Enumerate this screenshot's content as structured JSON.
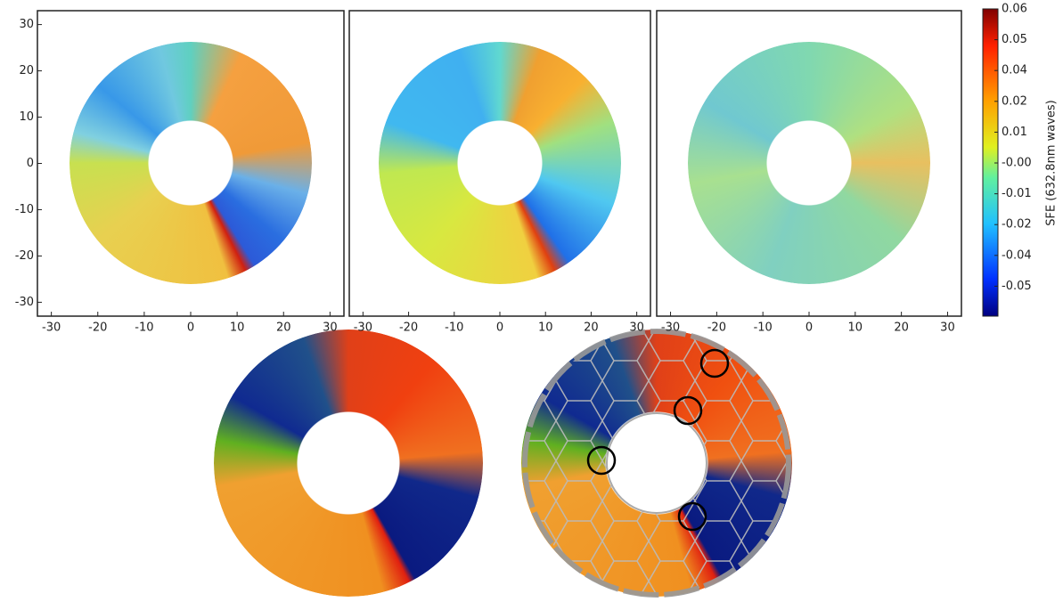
{
  "chart_data": [
    {
      "type": "annulus-map",
      "xlim": [
        -33,
        33
      ],
      "ylim": [
        -33,
        33
      ],
      "xticks": [
        -30,
        -20,
        -10,
        0,
        10,
        20,
        30
      ],
      "yticks": [
        -30,
        -20,
        -10,
        0,
        10,
        20,
        30
      ]
    },
    {
      "type": "annulus-map",
      "xlim": [
        -33,
        33
      ],
      "ylim": [
        -33,
        33
      ],
      "xticks": [
        -30,
        -20,
        -10,
        0,
        10,
        20,
        30
      ]
    },
    {
      "type": "annulus-map",
      "xlim": [
        -33,
        33
      ],
      "ylim": [
        -33,
        33
      ],
      "xticks": [
        -30,
        -20,
        -10,
        0,
        10,
        20,
        30
      ]
    }
  ],
  "colorbar": {
    "label": "SFE (632.8nm waves)",
    "ticks": [
      0.06,
      0.05,
      0.04,
      0.02,
      0.01,
      {
        "value": 0,
        "label": "-0.00"
      },
      -0.01,
      -0.02,
      -0.04,
      -0.05
    ]
  }
}
